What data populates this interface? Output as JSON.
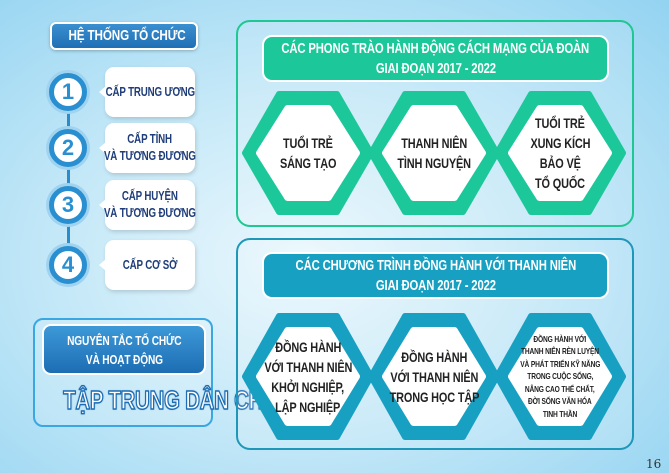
{
  "left": {
    "title": "HỆ THỐNG TỔ CHỨC",
    "levels": [
      {
        "number": "1",
        "lines": [
          "CẤP TRUNG ƯƠNG"
        ]
      },
      {
        "number": "2",
        "lines": [
          "CẤP TỈNH",
          "VÀ TƯƠNG ĐƯƠNG"
        ]
      },
      {
        "number": "3",
        "lines": [
          "CẤP HUYỆN",
          "VÀ TƯƠNG ĐƯƠNG"
        ]
      },
      {
        "number": "4",
        "lines": [
          "CẤP CƠ SỞ"
        ]
      }
    ],
    "principle": {
      "lines": [
        "NGUYÊN TẮC TỔ CHỨC",
        "VÀ HOẠT ĐỘNG"
      ],
      "value": "TẬP TRUNG DÂN CHỦ"
    }
  },
  "movements": {
    "title_lines": [
      "CÁC PHONG TRÀO HÀNH ĐỘNG CÁCH MẠNG CỦA ĐOÀN",
      "GIAI ĐOẠN 2017 - 2022"
    ],
    "color": "#1cc89a",
    "items": [
      {
        "lines": [
          "TUỔI TRẺ",
          "SÁNG TẠO"
        ]
      },
      {
        "lines": [
          "THANH NIÊN",
          "TÌNH NGUYỆN"
        ]
      },
      {
        "lines": [
          "TUỔI TRẺ",
          "XUNG KÍCH",
          "BẢO VỆ",
          "TỔ QUỐC"
        ]
      }
    ]
  },
  "programs": {
    "title_lines": [
      "CÁC CHƯƠNG TRÌNH ĐỒNG HÀNH VỚI THANH NIÊN",
      "GIAI ĐOẠN 2017 - 2022"
    ],
    "color": "#17a0c2",
    "items": [
      {
        "lines": [
          "ĐỒNG HÀNH",
          "VỚI THANH NIÊN",
          "KHỞI NGHIỆP,",
          "LẬP NGHIỆP"
        ]
      },
      {
        "lines": [
          "ĐỒNG HÀNH",
          "VỚI THANH NIÊN",
          "TRONG HỌC TẬP"
        ]
      },
      {
        "lines": [
          "ĐỒNG HÀNH VỚI",
          "THANH NIÊN RÈN LUYỆN",
          "VÀ PHÁT TRIỂN KỸ NĂNG",
          "TRONG CUỘC SỐNG,",
          "NÂNG CAO THỂ CHẤT,",
          "ĐỜI SỐNG VĂN HÓA",
          "TINH THẦN"
        ]
      }
    ]
  },
  "page_number": "16"
}
